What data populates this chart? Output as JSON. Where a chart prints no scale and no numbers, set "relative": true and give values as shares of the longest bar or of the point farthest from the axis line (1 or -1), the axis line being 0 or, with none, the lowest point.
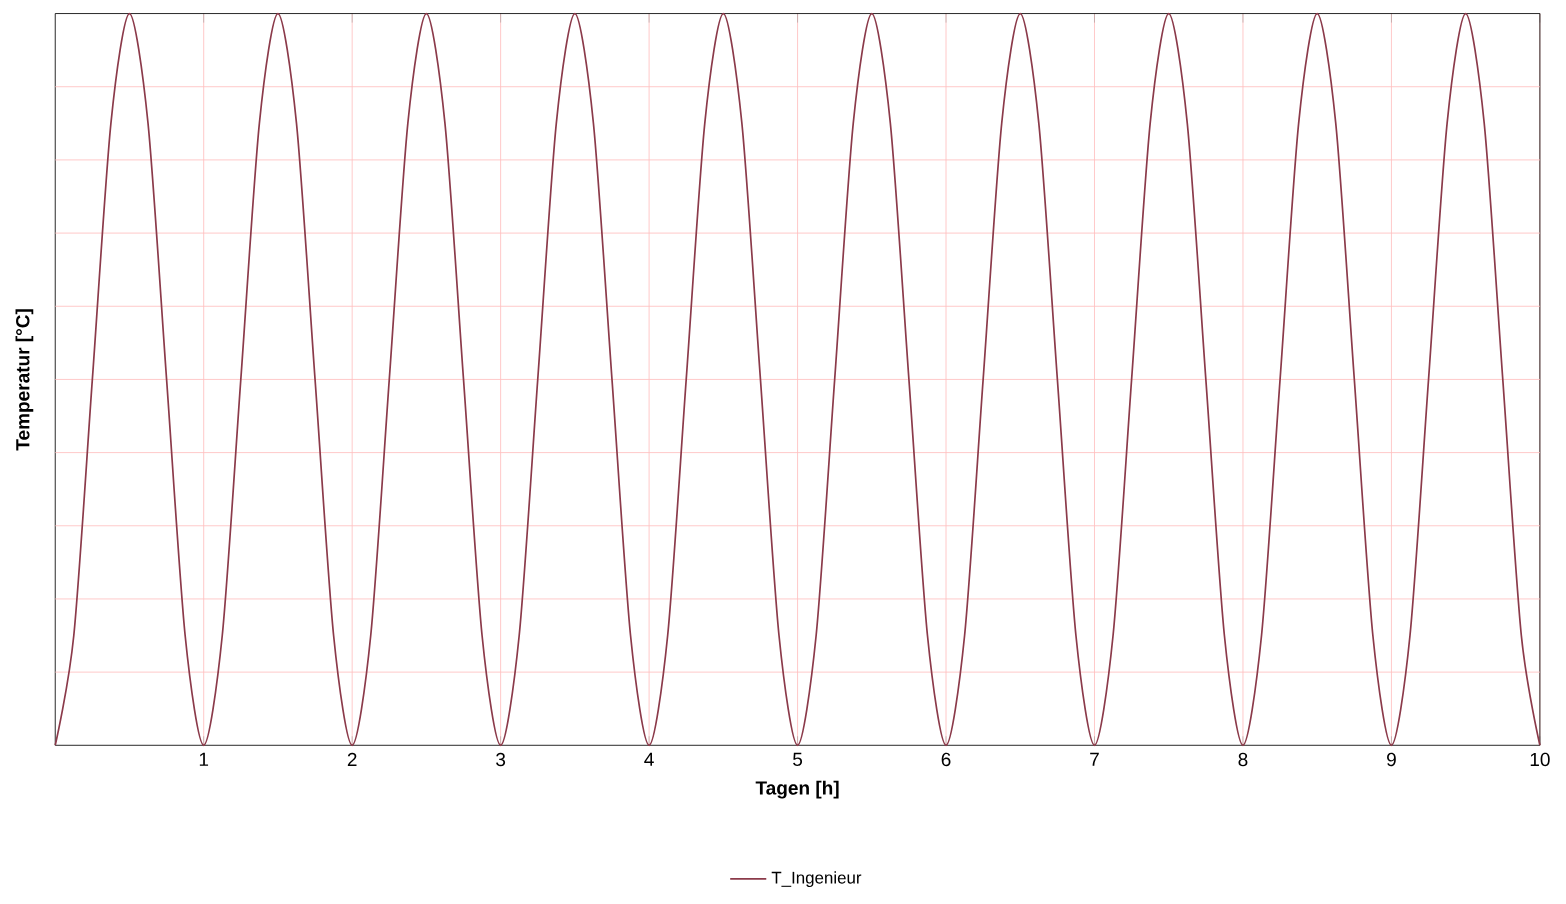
{
  "chart_data": {
    "type": "line",
    "relative": true,
    "xlabel": "Tagen [h]",
    "ylabel": "Temperatur [°C]",
    "x": [
      0,
      0.125,
      0.25,
      0.375,
      0.5,
      0.625,
      0.75,
      0.875,
      1,
      1.125,
      1.25,
      1.375,
      1.5,
      1.625,
      1.75,
      1.875,
      2,
      2.125,
      2.25,
      2.375,
      2.5,
      2.625,
      2.75,
      2.875,
      3,
      3.125,
      3.25,
      3.375,
      3.5,
      3.625,
      3.75,
      3.875,
      4,
      4.125,
      4.25,
      4.375,
      4.5,
      4.625,
      4.75,
      4.875,
      5,
      5.125,
      5.25,
      5.375,
      5.5,
      5.625,
      5.75,
      5.875,
      6,
      6.125,
      6.25,
      6.375,
      6.5,
      6.625,
      6.75,
      6.875,
      7,
      7.125,
      7.25,
      7.375,
      7.5,
      7.625,
      7.75,
      7.875,
      8,
      8.125,
      8.25,
      8.375,
      8.5,
      8.625,
      8.75,
      8.875,
      9,
      9.125,
      9.25,
      9.375,
      9.5,
      9.625,
      9.75,
      9.875,
      10
    ],
    "series": [
      {
        "name": "T_Ingenieur",
        "color": "#8b3a4a",
        "values": [
          0,
          0.15,
          0.5,
          0.85,
          1,
          0.85,
          0.5,
          0.15,
          0,
          0.15,
          0.5,
          0.85,
          1,
          0.85,
          0.5,
          0.15,
          0,
          0.15,
          0.5,
          0.85,
          1,
          0.85,
          0.5,
          0.15,
          0,
          0.15,
          0.5,
          0.85,
          1,
          0.85,
          0.5,
          0.15,
          0,
          0.15,
          0.5,
          0.85,
          1,
          0.85,
          0.5,
          0.15,
          0,
          0.15,
          0.5,
          0.85,
          1,
          0.85,
          0.5,
          0.15,
          0,
          0.15,
          0.5,
          0.85,
          1,
          0.85,
          0.5,
          0.15,
          0,
          0.15,
          0.5,
          0.85,
          1,
          0.85,
          0.5,
          0.15,
          0,
          0.15,
          0.5,
          0.85,
          1,
          0.85,
          0.5,
          0.15,
          0,
          0.15,
          0.5,
          0.85,
          1,
          0.85,
          0.5,
          0.15,
          0
        ]
      }
    ],
    "xlim": [
      0,
      10
    ],
    "xticks": [
      1,
      2,
      3,
      4,
      5,
      6,
      7,
      8,
      9,
      10
    ],
    "grid": true,
    "legend": "bottom",
    "marker": "none",
    "line_style": "solid"
  }
}
